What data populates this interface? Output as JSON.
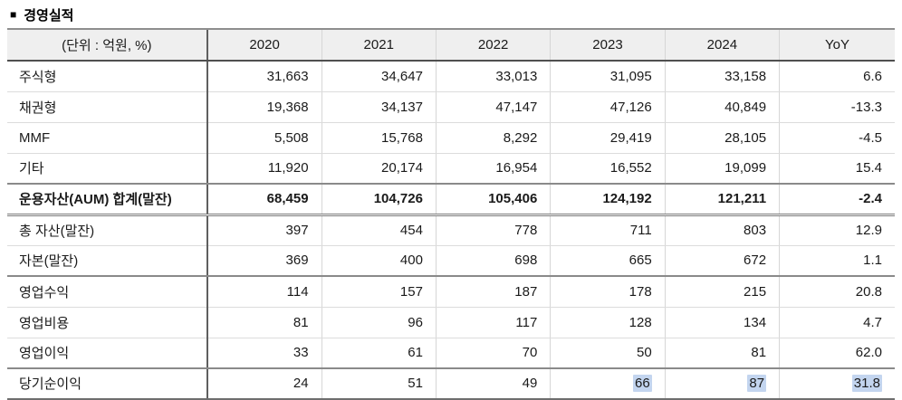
{
  "title": {
    "bullet": "■",
    "text": "경영실적"
  },
  "table": {
    "unit_header": "(단위 : 억원, %)",
    "columns": [
      "2020",
      "2021",
      "2022",
      "2023",
      "2024",
      "YoY"
    ],
    "highlight_color": "#c3d5ef",
    "rows": [
      {
        "label": "주식형",
        "values": [
          "31,663",
          "34,647",
          "33,013",
          "31,095",
          "33,158",
          "6.6"
        ]
      },
      {
        "label": "채권형",
        "values": [
          "19,368",
          "34,137",
          "47,147",
          "47,126",
          "40,849",
          "-13.3"
        ]
      },
      {
        "label": "MMF",
        "values": [
          "5,508",
          "15,768",
          "8,292",
          "29,419",
          "28,105",
          "-4.5"
        ]
      },
      {
        "label": "기타",
        "values": [
          "11,920",
          "20,174",
          "16,954",
          "16,552",
          "19,099",
          "15.4"
        ]
      },
      {
        "label": "운용자산(AUM) 합계(말잔)",
        "values": [
          "68,459",
          "104,726",
          "105,406",
          "124,192",
          "121,211",
          "-2.4"
        ]
      },
      {
        "label": "총 자산(말잔)",
        "values": [
          "397",
          "454",
          "778",
          "711",
          "803",
          "12.9"
        ]
      },
      {
        "label": "자본(말잔)",
        "values": [
          "369",
          "400",
          "698",
          "665",
          "672",
          "1.1"
        ]
      },
      {
        "label": "영업수익",
        "values": [
          "114",
          "157",
          "187",
          "178",
          "215",
          "20.8"
        ]
      },
      {
        "label": "영업비용",
        "values": [
          "81",
          "96",
          "117",
          "128",
          "134",
          "4.7"
        ]
      },
      {
        "label": "영업이익",
        "values": [
          "33",
          "61",
          "70",
          "50",
          "81",
          "62.0"
        ]
      },
      {
        "label": "당기순이익",
        "values": [
          "24",
          "51",
          "49",
          "66",
          "87",
          "31.8"
        ]
      }
    ]
  }
}
